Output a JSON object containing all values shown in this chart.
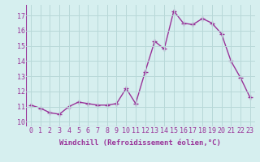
{
  "x": [
    0,
    1,
    2,
    3,
    4,
    5,
    6,
    7,
    8,
    9,
    10,
    11,
    12,
    13,
    14,
    15,
    16,
    17,
    18,
    19,
    20,
    21,
    22,
    23
  ],
  "y": [
    11.1,
    10.9,
    10.6,
    10.5,
    11.0,
    11.3,
    11.2,
    11.1,
    11.1,
    11.2,
    12.2,
    11.2,
    13.3,
    15.3,
    14.8,
    17.3,
    16.5,
    16.4,
    16.8,
    16.5,
    15.8,
    14.0,
    12.9,
    11.6
  ],
  "line_color": "#993399",
  "marker": "+",
  "marker_size": 4,
  "linewidth": 1.0,
  "xlabel": "Windchill (Refroidissement éolien,°C)",
  "xlabel_fontsize": 6.5,
  "ylabel_ticks": [
    10,
    11,
    12,
    13,
    14,
    15,
    16,
    17
  ],
  "xtick_labels": [
    "0",
    "1",
    "2",
    "3",
    "4",
    "5",
    "6",
    "7",
    "8",
    "9",
    "10",
    "11",
    "12",
    "13",
    "14",
    "15",
    "16",
    "17",
    "18",
    "19",
    "20",
    "21",
    "22",
    "23"
  ],
  "ylim": [
    9.7,
    17.7
  ],
  "xlim": [
    -0.5,
    23.5
  ],
  "background_color": "#d6efef",
  "grid_color": "#b8d8d8",
  "label_color": "#993399",
  "tick_fontsize": 6.0
}
